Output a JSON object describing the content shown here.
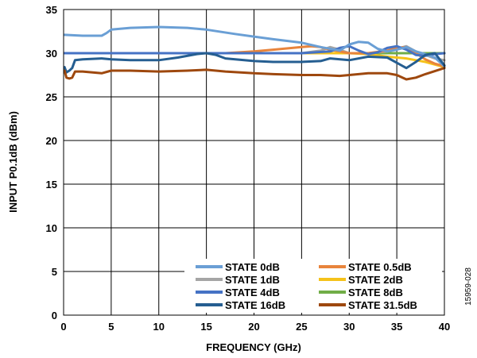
{
  "chart_data": {
    "type": "line",
    "xlabel": "FREQUENCY (GHz)",
    "ylabel": "INPUT P0.1dB (dBm)",
    "xlim": [
      0,
      40
    ],
    "ylim": [
      0,
      35
    ],
    "xticks": [
      0,
      5,
      10,
      15,
      20,
      25,
      30,
      35,
      40
    ],
    "yticks": [
      0,
      5,
      10,
      15,
      20,
      25,
      30,
      35
    ],
    "grid": true,
    "legend_placement": "bottom-right",
    "series": [
      {
        "name": "STATE 0dB",
        "color": "#6a9fd5",
        "x": [
          0.1,
          2,
          4,
          4.5,
          5,
          7,
          10,
          13,
          15,
          18,
          20,
          22,
          25,
          27,
          29,
          30,
          31,
          32,
          33,
          34,
          35,
          36,
          37,
          38,
          39,
          40
        ],
        "y": [
          32.1,
          32.0,
          32.0,
          32.3,
          32.7,
          32.9,
          33.0,
          32.9,
          32.7,
          32.2,
          31.9,
          31.6,
          31.2,
          30.7,
          30.3,
          31.0,
          31.3,
          31.2,
          30.5,
          30.2,
          30.4,
          30.7,
          30.2,
          29.9,
          29.5,
          28.5
        ]
      },
      {
        "name": "STATE 0.5dB",
        "color": "#e8843c",
        "x": [
          0.1,
          5,
          10,
          15,
          17,
          20,
          22,
          25,
          26,
          27,
          28,
          29,
          30,
          32,
          34,
          35,
          36,
          37,
          38,
          39,
          40
        ],
        "y": [
          30.0,
          30.0,
          30.0,
          30.0,
          30.0,
          30.2,
          30.4,
          30.7,
          30.8,
          30.7,
          30.4,
          30.2,
          30.0,
          30.0,
          30.3,
          30.6,
          30.7,
          30.0,
          29.3,
          28.8,
          28.5
        ]
      },
      {
        "name": "STATE 1dB",
        "color": "#a5a5a5",
        "x": [
          0.1,
          5,
          10,
          15,
          20,
          25,
          27,
          28,
          29,
          30,
          32,
          34,
          35,
          36,
          37,
          38,
          39,
          40
        ],
        "y": [
          30.0,
          30.0,
          30.0,
          30.0,
          30.0,
          30.0,
          30.3,
          30.7,
          30.4,
          30.0,
          30.0,
          30.2,
          30.5,
          30.8,
          30.2,
          29.8,
          29.4,
          29.2
        ]
      },
      {
        "name": "STATE 2dB",
        "color": "#f5c21a",
        "x": [
          0.1,
          5,
          10,
          15,
          20,
          25,
          30,
          32,
          34,
          35,
          36,
          37,
          38,
          39,
          40
        ],
        "y": [
          30.0,
          30.0,
          30.0,
          30.0,
          30.0,
          30.0,
          30.0,
          29.9,
          29.6,
          29.5,
          29.4,
          29.2,
          29.0,
          28.7,
          28.4
        ]
      },
      {
        "name": "STATE 4dB",
        "color": "#4572c4",
        "x": [
          0.1,
          5,
          10,
          15,
          20,
          25,
          28,
          29,
          30,
          31,
          32,
          33,
          34,
          35,
          36,
          37,
          38,
          39,
          40
        ],
        "y": [
          30.0,
          30.0,
          30.0,
          30.0,
          30.0,
          30.0,
          30.2,
          30.6,
          30.8,
          30.3,
          29.9,
          30.1,
          30.6,
          30.8,
          30.4,
          29.8,
          29.7,
          29.9,
          30.0
        ]
      },
      {
        "name": "STATE 8dB",
        "color": "#70ad47",
        "x": [
          0.1,
          5,
          10,
          15,
          20,
          25,
          30,
          35,
          40
        ],
        "y": [
          30.0,
          30.0,
          30.0,
          30.0,
          30.0,
          30.0,
          30.0,
          30.0,
          30.0
        ]
      },
      {
        "name": "STATE 16dB",
        "color": "#255e91",
        "x": [
          0.1,
          0.3,
          0.6,
          0.9,
          1.2,
          2,
          4,
          5,
          7,
          10,
          12,
          14,
          15,
          16,
          17,
          20,
          22,
          25,
          27,
          28,
          30,
          32,
          34,
          35,
          36,
          37,
          38,
          39,
          40
        ],
        "y": [
          28.4,
          27.8,
          28.0,
          28.3,
          29.2,
          29.3,
          29.4,
          29.3,
          29.2,
          29.2,
          29.5,
          29.9,
          30.0,
          29.8,
          29.4,
          29.1,
          29.0,
          29.0,
          29.1,
          29.4,
          29.2,
          29.6,
          29.5,
          28.9,
          28.3,
          29.0,
          29.8,
          30.0,
          28.6
        ]
      },
      {
        "name": "STATE 31.5dB",
        "color": "#9e480e",
        "x": [
          0.1,
          0.3,
          0.6,
          0.9,
          1.2,
          2,
          4,
          5,
          7,
          10,
          13,
          15,
          17,
          20,
          22,
          25,
          27,
          29,
          30,
          32,
          34,
          35,
          36,
          37,
          38,
          40
        ],
        "y": [
          28.0,
          27.2,
          27.1,
          27.2,
          27.9,
          27.9,
          27.7,
          28.0,
          28.0,
          27.9,
          28.0,
          28.1,
          27.9,
          27.7,
          27.6,
          27.5,
          27.5,
          27.4,
          27.5,
          27.7,
          27.7,
          27.5,
          27.0,
          27.2,
          27.6,
          28.3
        ]
      }
    ]
  },
  "figure_code": "15959-028"
}
